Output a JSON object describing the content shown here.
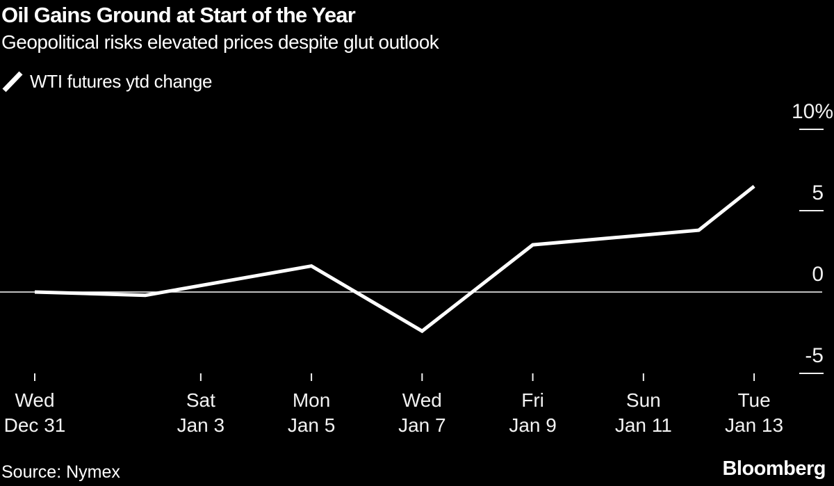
{
  "header": {
    "title": "Oil Gains Ground at Start of the Year",
    "subtitle": "Geopolitical risks elevated prices despite glut outlook"
  },
  "legend": {
    "icon": "line-series-slash-icon",
    "series_label": "WTI futures ytd change"
  },
  "chart_data": {
    "type": "line",
    "title": "Oil Gains Ground at Start of the Year",
    "subtitle": "Geopolitical risks elevated prices despite glut outlook",
    "unit": "%",
    "ylabel": "",
    "xlabel": "",
    "ylim": [
      -6.5,
      11.5
    ],
    "grid": "none",
    "zero_baseline": true,
    "legend_position": "top-left",
    "series": [
      {
        "name": "WTI futures ytd change",
        "points": [
          {
            "date": "Dec 31",
            "day": 0,
            "value": 0.0
          },
          {
            "date": "Jan 2",
            "day": 2,
            "value": -0.2
          },
          {
            "date": "Jan 5",
            "day": 5,
            "value": 1.6
          },
          {
            "date": "Jan 7",
            "day": 7,
            "value": -2.4
          },
          {
            "date": "Jan 9",
            "day": 9,
            "value": 2.9
          },
          {
            "date": "Jan 12",
            "day": 12,
            "value": 3.8
          },
          {
            "date": "Jan 13",
            "day": 13,
            "value": 6.5
          }
        ]
      }
    ],
    "x_ticks": [
      {
        "day": 0,
        "line1": "Wed",
        "line2": "Dec 31"
      },
      {
        "day": 3,
        "line1": "Sat",
        "line2": "Jan 3"
      },
      {
        "day": 5,
        "line1": "Mon",
        "line2": "Jan 5"
      },
      {
        "day": 7,
        "line1": "Wed",
        "line2": "Jan 7"
      },
      {
        "day": 9,
        "line1": "Fri",
        "line2": "Jan 9"
      },
      {
        "day": 11,
        "line1": "Sun",
        "line2": "Jan 11"
      },
      {
        "day": 13,
        "line1": "Tue",
        "line2": "Jan 13"
      }
    ],
    "y_ticks": [
      {
        "value": 10,
        "label": "10%"
      },
      {
        "value": 5,
        "label": "5"
      },
      {
        "value": 0,
        "label": "0"
      },
      {
        "value": -5,
        "label": "-5"
      }
    ]
  },
  "footer": {
    "source": "Source: Nymex",
    "brand": "Bloomberg"
  },
  "colors": {
    "background": "#000000",
    "line": "#ffffff",
    "baseline": "#ffffff",
    "axis_text": "#f2f2f2",
    "text": "#ffffff"
  }
}
